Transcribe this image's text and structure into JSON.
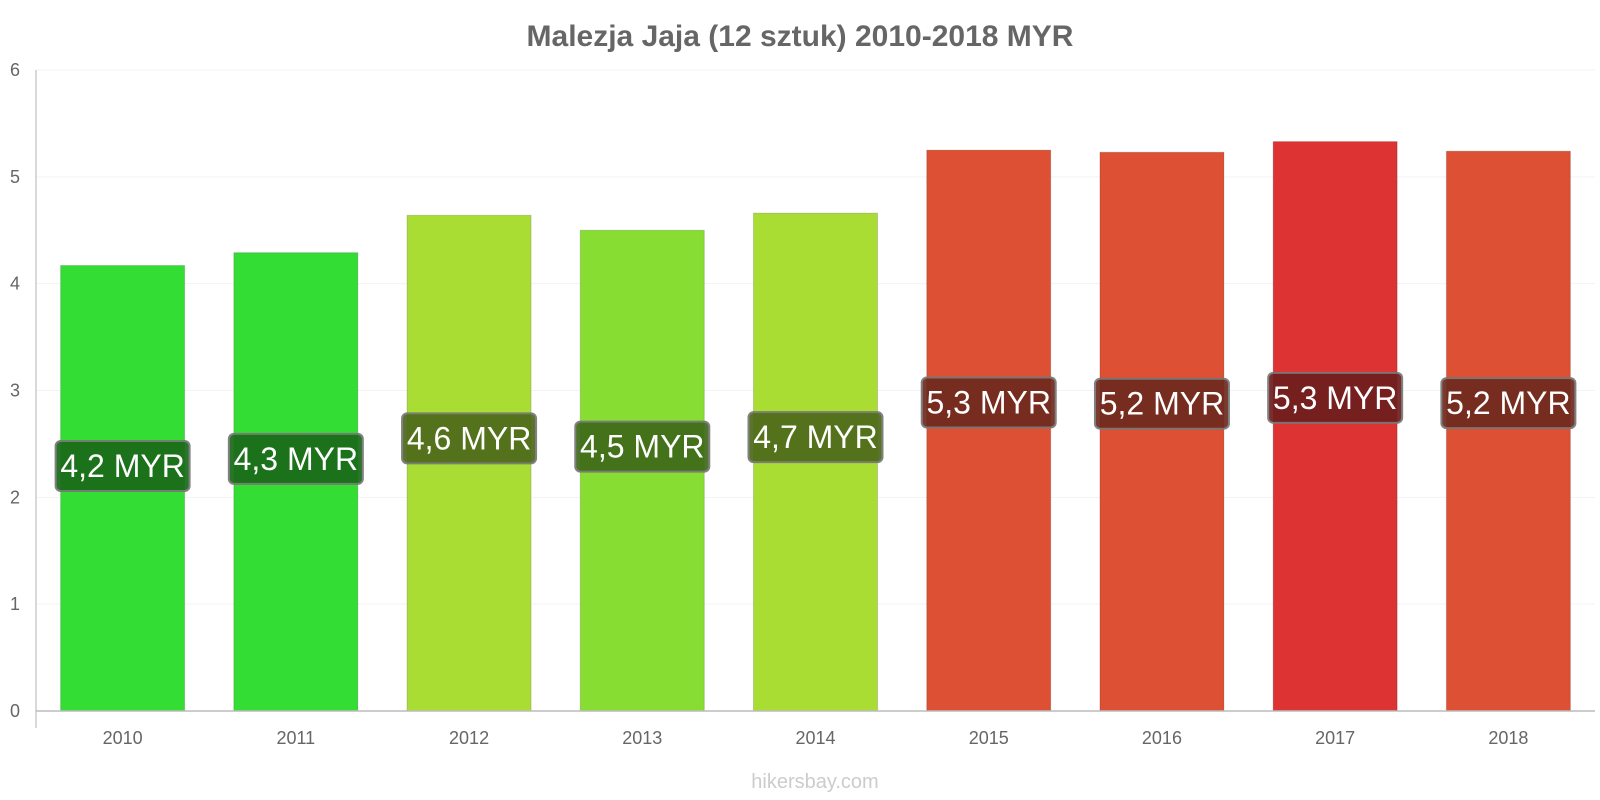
{
  "chart_data": {
    "type": "bar",
    "title": "Malezja Jaja (12 sztuk) 2010-2018 MYR",
    "categories": [
      "2010",
      "2011",
      "2012",
      "2013",
      "2014",
      "2015",
      "2016",
      "2017",
      "2018"
    ],
    "values": [
      4.17,
      4.29,
      4.64,
      4.5,
      4.66,
      5.25,
      5.23,
      5.33,
      5.24
    ],
    "data_labels": [
      "4,2 MYR",
      "4,3 MYR",
      "4,6 MYR",
      "4,5 MYR",
      "4,7 MYR",
      "5,3 MYR",
      "5,2 MYR",
      "5,3 MYR",
      "5,2 MYR"
    ],
    "colors": [
      "#33dd33",
      "#33dd33",
      "#aadd33",
      "#88dd33",
      "#aadd33",
      "#dd5033",
      "#dd5033",
      "#dd3333",
      "#dd5033"
    ],
    "label_bg_colors": [
      "#1a6a1a",
      "#1a6a1a",
      "#4d6a1a",
      "#3f6a1a",
      "#4d6a1a",
      "#6e2a1e",
      "#6e2a1e",
      "#6e1e1e",
      "#6e2a1e"
    ],
    "ylim": [
      0,
      6
    ],
    "yticks": [
      "0",
      "1",
      "2",
      "3",
      "4",
      "5",
      "6"
    ],
    "grid": true,
    "xlabel": "",
    "ylabel": ""
  },
  "credit": "hikersbay.com"
}
